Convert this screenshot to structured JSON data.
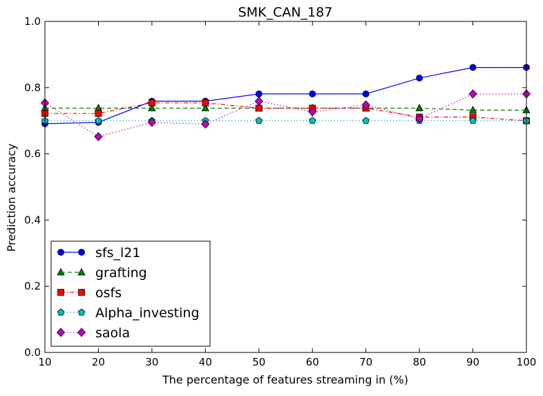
{
  "chart_data": {
    "type": "line",
    "title": "SMK_CAN_187",
    "xlabel": "The percentage of features streaming in (%)",
    "ylabel": "Prediction accuracy",
    "xlim": [
      10,
      100
    ],
    "ylim": [
      0.0,
      1.0
    ],
    "x": [
      10,
      20,
      30,
      40,
      50,
      60,
      70,
      80,
      90,
      100
    ],
    "xticks": [
      "10",
      "20",
      "30",
      "40",
      "50",
      "60",
      "70",
      "80",
      "90",
      "100"
    ],
    "yticks": [
      "0.0",
      "0.2",
      "0.4",
      "0.6",
      "0.8",
      "1.0"
    ],
    "grid": false,
    "legend_position": "lower-left",
    "series": [
      {
        "name": "sfs_l21",
        "color": "#0000ff",
        "marker": "circle",
        "dash": "solid",
        "values": [
          0.691,
          0.695,
          0.759,
          0.759,
          0.781,
          0.781,
          0.781,
          0.829,
          0.861,
          0.861
        ]
      },
      {
        "name": "grafting",
        "color": "#007f00",
        "marker": "triangle",
        "dash": "dashed",
        "values": [
          0.738,
          0.738,
          0.738,
          0.738,
          0.738,
          0.738,
          0.738,
          0.738,
          0.732,
          0.732
        ]
      },
      {
        "name": "osfs",
        "color": "#ff0000",
        "marker": "square",
        "dash": "dashdot",
        "values": [
          0.722,
          0.722,
          0.754,
          0.754,
          0.738,
          0.738,
          0.738,
          0.711,
          0.711,
          0.7
        ]
      },
      {
        "name": "Alpha_investing",
        "color": "#00bfbf",
        "marker": "pentagon",
        "dash": "dotted",
        "values": [
          0.7,
          0.7,
          0.7,
          0.7,
          0.7,
          0.7,
          0.7,
          0.7,
          0.7,
          0.7
        ]
      },
      {
        "name": "saola",
        "color": "#bf00bf",
        "marker": "diamond",
        "dash": "dotted",
        "values": [
          0.754,
          0.652,
          0.695,
          0.69,
          0.759,
          0.727,
          0.748,
          0.706,
          0.781,
          0.781
        ]
      }
    ]
  }
}
